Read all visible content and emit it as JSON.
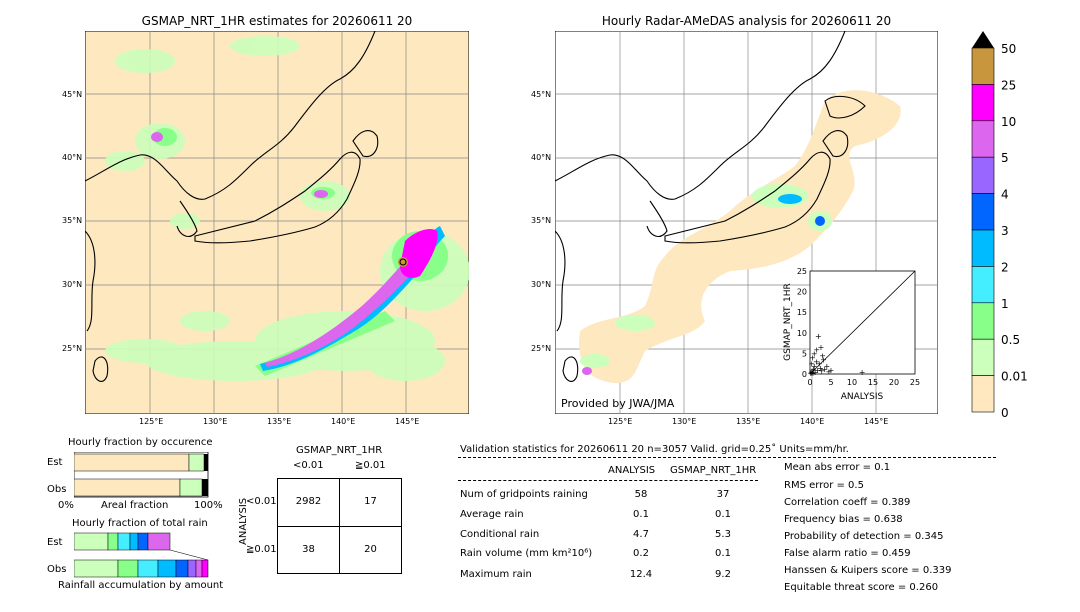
{
  "left_map": {
    "title": "GSMAP_NRT_1HR estimates for 20260611 20",
    "lat_labels": [
      "45°N",
      "40°N",
      "35°N",
      "30°N",
      "25°N"
    ],
    "lon_labels": [
      "125°E",
      "130°E",
      "135°E",
      "140°E",
      "145°E"
    ]
  },
  "right_map": {
    "title": "Hourly Radar-AMeDAS analysis for 20260611 20",
    "lat_labels": [
      "45°N",
      "40°N",
      "35°N",
      "30°N",
      "25°N"
    ],
    "lon_labels": [
      "125°E",
      "130°E",
      "135°E",
      "140°E",
      "145°E"
    ],
    "credit": "Provided by JWA/JMA"
  },
  "colorbar": {
    "labels": [
      "50",
      "25",
      "10",
      "5",
      "4",
      "3",
      "2",
      "1",
      "0.5",
      "0.01",
      "0"
    ],
    "colors": [
      "#c8963c",
      "#ff00ff",
      "#dd66ee",
      "#9966ff",
      "#0066ff",
      "#00bbff",
      "#44eeff",
      "#88ff88",
      "#ccffbb",
      "#ffe8c0"
    ]
  },
  "chart_data": [
    {
      "type": "scatter",
      "title": "",
      "xlabel": "ANALYSIS",
      "ylabel": "GSMAP_NRT_1HR",
      "xlim": [
        0,
        25
      ],
      "ylim": [
        0,
        25
      ],
      "xticks": [
        "0",
        "5",
        "10",
        "15",
        "20",
        "25"
      ],
      "yticks": [
        "0",
        "5",
        "10",
        "15",
        "20",
        "25"
      ],
      "points": [
        [
          0.3,
          0.4
        ],
        [
          0.5,
          0.8
        ],
        [
          0.8,
          1.2
        ],
        [
          1.0,
          2.0
        ],
        [
          1.2,
          0.5
        ],
        [
          1.5,
          3.0
        ],
        [
          1.8,
          1.0
        ],
        [
          2.0,
          9.2
        ],
        [
          2.2,
          2.5
        ],
        [
          2.5,
          1.5
        ],
        [
          2.8,
          0.8
        ],
        [
          3.0,
          4.5
        ],
        [
          3.5,
          1.2
        ],
        [
          4.0,
          2.0
        ],
        [
          4.5,
          0.6
        ],
        [
          5.0,
          1.0
        ],
        [
          1.0,
          5.0
        ],
        [
          0.6,
          4.0
        ],
        [
          0.4,
          2.5
        ],
        [
          1.6,
          6.0
        ],
        [
          2.6,
          6.5
        ],
        [
          3.2,
          3.5
        ],
        [
          12.4,
          0.5
        ],
        [
          0.2,
          0.2
        ],
        [
          0.7,
          0.3
        ]
      ]
    },
    {
      "type": "bar",
      "title": "Hourly fraction by occurence",
      "categories": [
        "Est",
        "Obs"
      ],
      "xlabel": "Areal fraction",
      "xlim_labels": [
        "0%",
        "100%"
      ]
    },
    {
      "type": "bar",
      "title": "Hourly fraction of total rain",
      "categories": [
        "Est",
        "Obs"
      ],
      "xlabel": "Rainfall accumulation by amount"
    },
    {
      "type": "table",
      "title": "GSMAP_NRT_1HR",
      "col_headers": [
        "<0.01",
        "≧0.01"
      ],
      "row_axis_label": "ANALYSIS",
      "row_headers": [
        "<0.01",
        "≧0.01"
      ],
      "cells": [
        [
          "2982",
          "17"
        ],
        [
          "38",
          "20"
        ]
      ]
    }
  ],
  "validation": {
    "header": "Validation statistics for 20260611 20  n=3057 Valid. grid=0.25˚ Units=mm/hr.",
    "col_analysis": "ANALYSIS",
    "col_gsmap": "GSMAP_NRT_1HR",
    "rows": [
      {
        "label": "Num of gridpoints raining",
        "analysis": "58",
        "gsmap": "37"
      },
      {
        "label": "Average rain",
        "analysis": "0.1",
        "gsmap": "0.1"
      },
      {
        "label": "Conditional rain",
        "analysis": "4.7",
        "gsmap": "5.3"
      },
      {
        "label": "Rain volume (mm km²10⁶)",
        "analysis": "0.2",
        "gsmap": "0.1"
      },
      {
        "label": "Maximum rain",
        "analysis": "12.4",
        "gsmap": "9.2"
      }
    ],
    "scores": [
      "Mean abs error =    0.1",
      "RMS error =    0.5",
      "Correlation coeff =  0.389",
      "Frequency bias =  0.638",
      "Probability of detection =  0.345",
      "False alarm ratio =  0.459",
      "Hanssen & Kuipers score =  0.339",
      "Equitable threat score =  0.260"
    ]
  }
}
